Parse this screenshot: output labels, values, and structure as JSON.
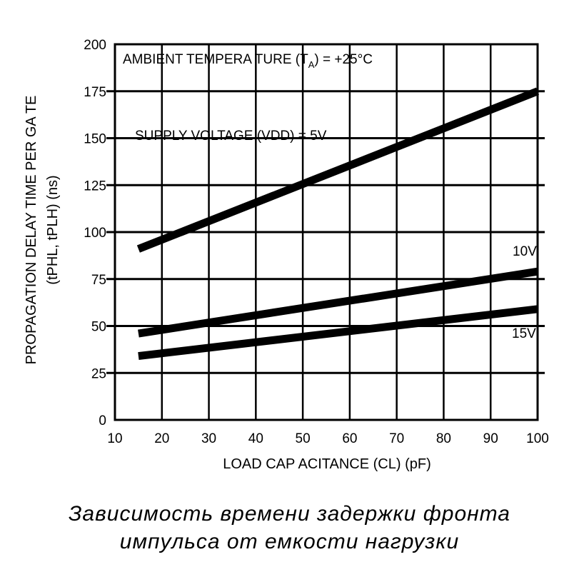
{
  "chart_data": {
    "type": "line",
    "xlabel": "LOAD CAP ACITANCE (CL) (pF)",
    "ylabel_line1": "PROPAGATION DELAY TIME PER GA TE",
    "ylabel_line2": "(tPHL, tPLH) (ns)",
    "x_ticks": [
      10,
      20,
      30,
      40,
      50,
      60,
      70,
      80,
      90,
      100
    ],
    "y_ticks": [
      0,
      25,
      50,
      75,
      100,
      125,
      150,
      175,
      200
    ],
    "xlim": [
      10,
      100
    ],
    "ylim": [
      0,
      200
    ],
    "grid": true,
    "series": [
      {
        "name": "SUPPLY VOLTAGE (VDD) = 5V",
        "x": [
          15,
          100
        ],
        "y": [
          91,
          175
        ]
      },
      {
        "name": "10V",
        "x": [
          15,
          100
        ],
        "y": [
          46,
          79
        ]
      },
      {
        "name": "15V",
        "x": [
          15,
          100
        ],
        "y": [
          34,
          59
        ]
      }
    ],
    "annotations": {
      "ambient": "AMBIENT TEMPERA TURE (T",
      "ambient_sub": "A",
      "ambient_tail": ") = +25°C"
    }
  },
  "caption": {
    "line1": "Зависимость времени задержки фронта",
    "line2": "импульса от емкости нагрузки"
  }
}
